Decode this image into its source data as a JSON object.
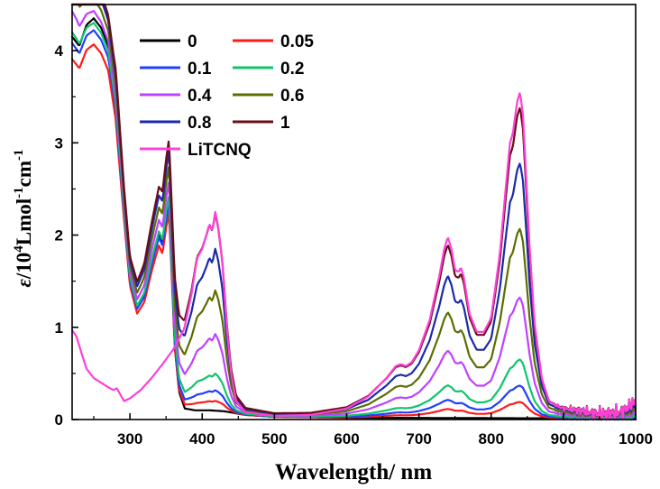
{
  "chart_data": {
    "type": "line",
    "title": "",
    "xlabel": "Wavelength/ nm",
    "ylabel": {
      "symbol": "ε",
      "prefix": "/10",
      "sup1": "4",
      "middle": "Lmol",
      "sup2": "-1",
      "suffix": "cm",
      "sup3": "-1"
    },
    "xlim": [
      220,
      1000
    ],
    "ylim": [
      0,
      4.5
    ],
    "xticks": [
      300,
      400,
      500,
      600,
      700,
      800,
      900,
      1000
    ],
    "yticks": [
      0,
      1,
      2,
      3,
      4
    ],
    "legend_position": "top-left",
    "series": [
      {
        "name": "0",
        "color": "#000000",
        "s": 0.0,
        "uv": 1.0
      },
      {
        "name": "0.05",
        "color": "#ff1a1a",
        "s": 0.05,
        "uv": 0.93
      },
      {
        "name": "0.1",
        "color": "#1f3fff",
        "s": 0.1,
        "uv": 0.96
      },
      {
        "name": "0.2",
        "color": "#11c46a",
        "s": 0.18,
        "uv": 0.97
      },
      {
        "name": "0.4",
        "color": "#c040ff",
        "s": 0.37,
        "uv": 0.98
      },
      {
        "name": "0.6",
        "color": "#5a6e00",
        "s": 0.58,
        "uv": 0.99
      },
      {
        "name": "0.8",
        "color": "#1a2aa8",
        "s": 0.78,
        "uv": 1.0
      },
      {
        "name": "1",
        "color": "#6a0d16",
        "s": 0.95,
        "uv": 1.0
      },
      {
        "name": "LiTCNQ",
        "color": "#ff40d8",
        "s": 1.0,
        "uv": 0.0
      }
    ],
    "peaks_reference": {
      "uv_max": {
        "x": 250,
        "y": 4.35
      },
      "band_350": {
        "x": 352,
        "y": 2.38
      },
      "band_420_max": {
        "x": 420,
        "y": 2.25
      },
      "band_740_max": {
        "x": 740,
        "y": 1.98
      },
      "band_840_max": {
        "x": 840,
        "y": 3.55
      }
    }
  }
}
